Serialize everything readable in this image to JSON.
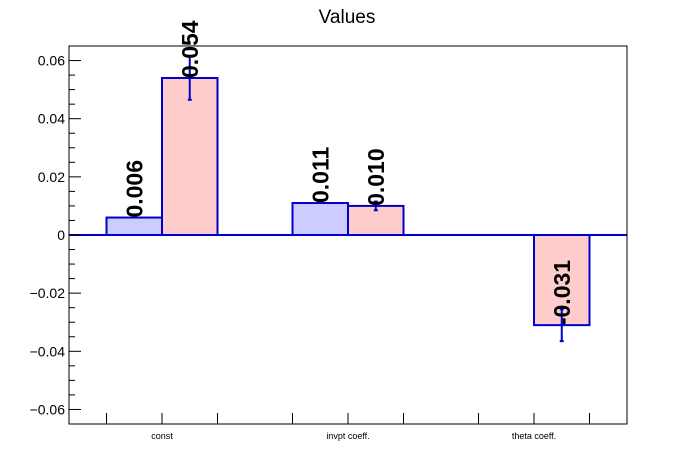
{
  "chart_data": {
    "type": "bar",
    "title": "Values",
    "xlabel": "",
    "ylabel": "",
    "categories": [
      "const",
      "invpt coeff.",
      "theta coeff."
    ],
    "series": [
      {
        "values": [
          0.006,
          0.011,
          0.0
        ],
        "errors": [
          0.0,
          0.0,
          0.0
        ],
        "labels": [
          "0.006",
          "0.011",
          ""
        ],
        "color": "#ccccff"
      },
      {
        "values": [
          0.054,
          0.01,
          -0.031
        ],
        "errors": [
          0.0075,
          0.0015,
          0.0055
        ],
        "labels": [
          "0.054",
          "0.010",
          "-0.031"
        ],
        "color": "#ffcccc"
      }
    ],
    "ylim": [
      -0.065,
      0.065
    ],
    "yticks": [
      -0.06,
      -0.04,
      -0.02,
      0,
      0.02,
      0.04,
      0.06
    ],
    "ytick_labels": [
      "−0.06",
      "−0.04",
      "−0.02",
      "0",
      "0.02",
      "0.04",
      "0.06"
    ],
    "grid": false,
    "bar_edge_color": "#0000cc"
  }
}
